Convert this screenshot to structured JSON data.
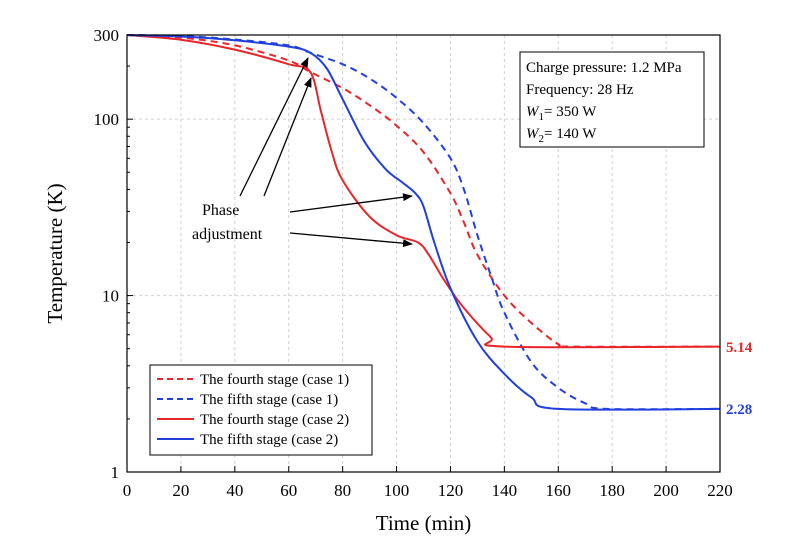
{
  "chart_data": {
    "type": "line",
    "xlabel": "Time (min)",
    "ylabel": "Temperature (K)",
    "xlim": [
      0,
      220
    ],
    "ylim": [
      1,
      300
    ],
    "yscale": "log",
    "grid": true,
    "legend_placement": "bottom-left",
    "x_ticks": [
      "0",
      "20",
      "40",
      "60",
      "80",
      "100",
      "120",
      "140",
      "160",
      "180",
      "200",
      "220"
    ],
    "y_ticks": [
      "1",
      "10",
      "100",
      "300"
    ],
    "info_box": [
      "Charge pressure: 1.2 MPa",
      "Frequency: 28 Hz",
      "W1= 350 W",
      "W2= 140 W"
    ],
    "annotation": {
      "lines": [
        "Phase",
        "adjustment"
      ]
    },
    "end_labels": [
      {
        "text": "5.14",
        "color": "#e8262a"
      },
      {
        "text": "2.28",
        "color": "#1f3fe0"
      }
    ],
    "series": [
      {
        "name": "The fourth stage (case 1)",
        "color": "#e8262a",
        "style": "dashed",
        "points": [
          [
            0,
            300
          ],
          [
            20,
            290
          ],
          [
            40,
            262
          ],
          [
            60,
            215
          ],
          [
            68,
            185
          ],
          [
            80,
            150
          ],
          [
            90,
            120
          ],
          [
            100,
            92
          ],
          [
            110,
            65
          ],
          [
            120,
            38
          ],
          [
            125,
            26
          ],
          [
            130,
            17
          ],
          [
            140,
            10
          ],
          [
            150,
            7
          ],
          [
            160,
            5.3
          ],
          [
            165,
            5.14
          ],
          [
            220,
            5.14
          ]
        ]
      },
      {
        "name": "The fifth stage (case 1)",
        "color": "#1f3fe0",
        "style": "dashed",
        "points": [
          [
            0,
            300
          ],
          [
            20,
            296
          ],
          [
            40,
            283
          ],
          [
            60,
            262
          ],
          [
            68,
            238
          ],
          [
            80,
            205
          ],
          [
            90,
            170
          ],
          [
            100,
            132
          ],
          [
            110,
            95
          ],
          [
            120,
            60
          ],
          [
            125,
            40
          ],
          [
            130,
            22
          ],
          [
            135,
            13
          ],
          [
            140,
            8
          ],
          [
            150,
            4.2
          ],
          [
            160,
            3.0
          ],
          [
            170,
            2.45
          ],
          [
            178,
            2.28
          ],
          [
            220,
            2.28
          ]
        ]
      },
      {
        "name": "The fourth stage (case 2)",
        "color": "#e8262a",
        "style": "solid",
        "points": [
          [
            0,
            300
          ],
          [
            20,
            282
          ],
          [
            40,
            248
          ],
          [
            60,
            205
          ],
          [
            68,
            185
          ],
          [
            72,
            110
          ],
          [
            76,
            65
          ],
          [
            80,
            45
          ],
          [
            90,
            28
          ],
          [
            100,
            22
          ],
          [
            108,
            20
          ],
          [
            112,
            17
          ],
          [
            118,
            12
          ],
          [
            125,
            8.5
          ],
          [
            135,
            5.8
          ],
          [
            140,
            5.14
          ],
          [
            220,
            5.14
          ]
        ]
      },
      {
        "name": "The fifth stage (case 2)",
        "color": "#1f3fe0",
        "style": "solid",
        "points": [
          [
            0,
            300
          ],
          [
            20,
            294
          ],
          [
            40,
            280
          ],
          [
            60,
            258
          ],
          [
            68,
            238
          ],
          [
            74,
            195
          ],
          [
            80,
            130
          ],
          [
            88,
            75
          ],
          [
            96,
            52
          ],
          [
            102,
            44
          ],
          [
            107,
            38
          ],
          [
            110,
            32
          ],
          [
            114,
            20
          ],
          [
            120,
            11
          ],
          [
            130,
            5.5
          ],
          [
            140,
            3.6
          ],
          [
            150,
            2.65
          ],
          [
            160,
            2.28
          ],
          [
            220,
            2.28
          ]
        ]
      }
    ]
  }
}
